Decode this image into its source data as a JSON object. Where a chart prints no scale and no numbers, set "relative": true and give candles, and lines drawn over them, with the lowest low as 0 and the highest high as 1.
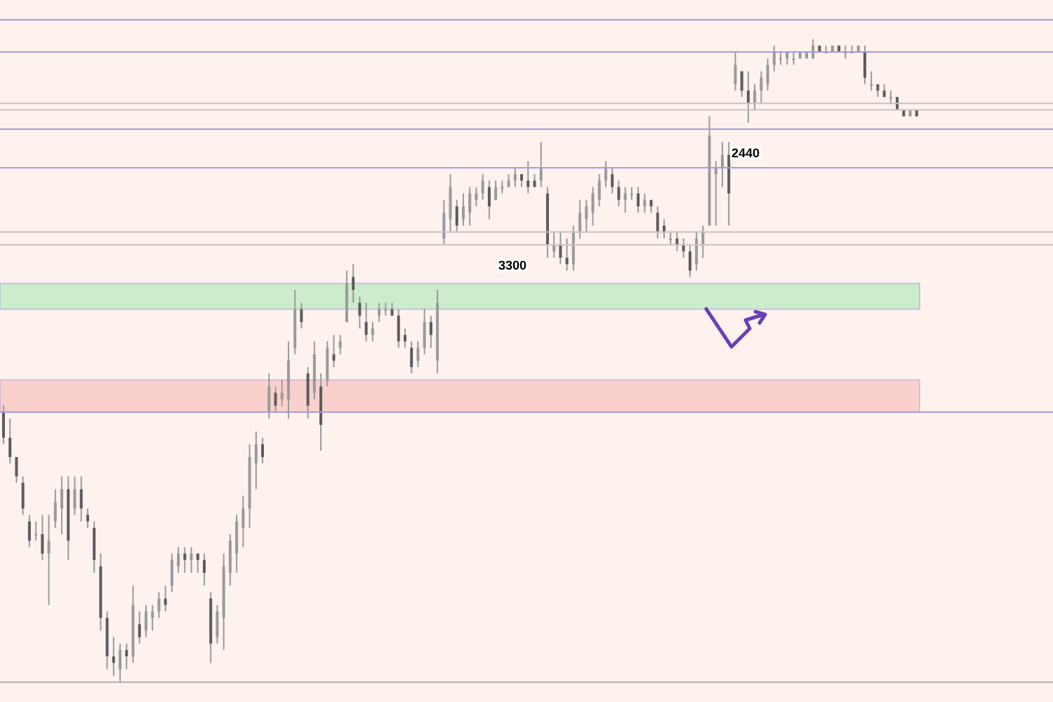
{
  "chart_data": {
    "type": "candlestick",
    "relative": true,
    "tick_labels": false,
    "categories": [
      null,
      null,
      null,
      null,
      null,
      null,
      null,
      null,
      null,
      null,
      null,
      null,
      null,
      null,
      null,
      null,
      null,
      null,
      null,
      null,
      null,
      null,
      null,
      null,
      null,
      null,
      null,
      null,
      null,
      null,
      null,
      null,
      null,
      null,
      null,
      null,
      null,
      null,
      null,
      null,
      null,
      null,
      null,
      null,
      null,
      null,
      null,
      null,
      null,
      null,
      null,
      null,
      null,
      null,
      null,
      null,
      null,
      null,
      null,
      null,
      null,
      null,
      null,
      null,
      null,
      null,
      null,
      null,
      null,
      null,
      null,
      null,
      null,
      null,
      null,
      null,
      null,
      null,
      null,
      null,
      null,
      null,
      null,
      null,
      null,
      null,
      null,
      null,
      null,
      null,
      null,
      null,
      null,
      null,
      null,
      null,
      null,
      null,
      null,
      null,
      null,
      null,
      null,
      null,
      null,
      null,
      null,
      null,
      null,
      null,
      null,
      null,
      null,
      null,
      null,
      null,
      null,
      null,
      null,
      null,
      null,
      null,
      null,
      null,
      null,
      null,
      null,
      null,
      null,
      null,
      null,
      null,
      null,
      null,
      null,
      null,
      null,
      null,
      null,
      null,
      null,
      null
    ],
    "ohlc": [
      [
        0.42,
        0.43,
        0.37,
        0.38
      ],
      [
        0.38,
        0.41,
        0.34,
        0.35
      ],
      [
        0.35,
        0.35,
        0.31,
        0.32
      ],
      [
        0.31,
        0.32,
        0.26,
        0.27
      ],
      [
        0.25,
        0.26,
        0.21,
        0.22
      ],
      [
        0.23,
        0.25,
        0.22,
        0.23
      ],
      [
        0.23,
        0.26,
        0.19,
        0.2
      ],
      [
        0.2,
        0.26,
        0.12,
        0.22
      ],
      [
        0.25,
        0.3,
        0.24,
        0.28
      ],
      [
        0.27,
        0.32,
        0.23,
        0.3
      ],
      [
        0.3,
        0.32,
        0.19,
        0.22
      ],
      [
        0.27,
        0.32,
        0.26,
        0.3
      ],
      [
        0.3,
        0.32,
        0.25,
        0.27
      ],
      [
        0.26,
        0.27,
        0.24,
        0.25
      ],
      [
        0.24,
        0.25,
        0.17,
        0.19
      ],
      [
        0.18,
        0.2,
        0.08,
        0.1
      ],
      [
        0.1,
        0.11,
        0.02,
        0.04
      ],
      [
        0.04,
        0.07,
        0.01,
        0.03
      ],
      [
        0.02,
        0.06,
        0,
        0.05
      ],
      [
        0.05,
        0.06,
        0.02,
        0.04
      ],
      [
        0.04,
        0.15,
        0.03,
        0.12
      ],
      [
        0.09,
        0.11,
        0.06,
        0.07
      ],
      [
        0.08,
        0.12,
        0.07,
        0.11
      ],
      [
        0.1,
        0.12,
        0.08,
        0.11
      ],
      [
        0.11,
        0.14,
        0.1,
        0.13
      ],
      [
        0.13,
        0.15,
        0.11,
        0.12
      ],
      [
        0.15,
        0.2,
        0.14,
        0.19
      ],
      [
        0.18,
        0.21,
        0.17,
        0.2
      ],
      [
        0.2,
        0.21,
        0.17,
        0.19
      ],
      [
        0.19,
        0.21,
        0.17,
        0.2
      ],
      [
        0.2,
        0.2,
        0.17,
        0.19
      ],
      [
        0.19,
        0.2,
        0.15,
        0.17
      ],
      [
        0.13,
        0.14,
        0.03,
        0.06
      ],
      [
        0.07,
        0.12,
        0.06,
        0.11
      ],
      [
        0.1,
        0.2,
        0.05,
        0.18
      ],
      [
        0.17,
        0.23,
        0.15,
        0.22
      ],
      [
        0.2,
        0.26,
        0.17,
        0.25
      ],
      [
        0.24,
        0.29,
        0.21,
        0.27
      ],
      [
        0.27,
        0.37,
        0.24,
        0.35
      ],
      [
        0.34,
        0.39,
        0.3,
        0.37
      ],
      [
        0.37,
        0.38,
        0.34,
        0.35
      ],
      [
        0.42,
        0.48,
        0.41,
        0.46
      ],
      [
        0.45,
        0.46,
        0.42,
        0.43
      ],
      [
        0.44,
        0.47,
        0.43,
        0.45
      ],
      [
        0.44,
        0.53,
        0.41,
        0.5
      ],
      [
        0.52,
        0.61,
        0.51,
        0.58
      ],
      [
        0.58,
        0.59,
        0.55,
        0.56
      ],
      [
        0.48,
        0.49,
        0.41,
        0.43
      ],
      [
        0.45,
        0.53,
        0.44,
        0.51
      ],
      [
        0.46,
        0.48,
        0.36,
        0.4
      ],
      [
        0.47,
        0.53,
        0.46,
        0.52
      ],
      [
        0.51,
        0.54,
        0.49,
        0.5
      ],
      [
        0.52,
        0.54,
        0.51,
        0.53
      ],
      [
        0.56,
        0.64,
        0.56,
        0.62
      ],
      [
        0.63,
        0.65,
        0.59,
        0.61
      ],
      [
        0.59,
        0.6,
        0.55,
        0.57
      ],
      [
        0.56,
        0.59,
        0.53,
        0.54
      ],
      [
        0.54,
        0.56,
        0.53,
        0.55
      ],
      [
        0.57,
        0.59,
        0.56,
        0.58
      ],
      [
        0.58,
        0.59,
        0.57,
        0.58
      ],
      [
        0.58,
        0.59,
        0.57,
        0.57
      ],
      [
        0.57,
        0.58,
        0.52,
        0.53
      ],
      [
        0.54,
        0.55,
        0.52,
        0.53
      ],
      [
        0.52,
        0.53,
        0.48,
        0.49
      ],
      [
        0.5,
        0.53,
        0.49,
        0.52
      ],
      [
        0.52,
        0.58,
        0.51,
        0.56
      ],
      [
        0.56,
        0.57,
        0.52,
        0.54
      ],
      [
        0.5,
        0.61,
        0.48,
        0.59
      ],
      [
        0.69,
        0.75,
        0.68,
        0.73
      ],
      [
        0.72,
        0.79,
        0.7,
        0.77
      ],
      [
        0.74,
        0.75,
        0.7,
        0.71
      ],
      [
        0.72,
        0.76,
        0.71,
        0.74
      ],
      [
        0.73,
        0.77,
        0.71,
        0.76
      ],
      [
        0.75,
        0.77,
        0.74,
        0.76
      ],
      [
        0.76,
        0.79,
        0.75,
        0.78
      ],
      [
        0.77,
        0.78,
        0.72,
        0.74
      ],
      [
        0.75,
        0.78,
        0.75,
        0.77
      ],
      [
        0.77,
        0.78,
        0.76,
        0.77
      ],
      [
        0.77,
        0.79,
        0.77,
        0.78
      ],
      [
        0.78,
        0.8,
        0.77,
        0.79
      ],
      [
        0.79,
        0.79,
        0.77,
        0.78
      ],
      [
        0.78,
        0.81,
        0.76,
        0.77
      ],
      [
        0.78,
        0.79,
        0.77,
        0.77
      ],
      [
        0.78,
        0.84,
        0.77,
        0.8
      ],
      [
        0.76,
        0.77,
        0.66,
        0.68
      ],
      [
        0.67,
        0.7,
        0.66,
        0.68
      ],
      [
        0.68,
        0.7,
        0.65,
        0.66
      ],
      [
        0.66,
        0.69,
        0.64,
        0.65
      ],
      [
        0.65,
        0.71,
        0.64,
        0.7
      ],
      [
        0.7,
        0.75,
        0.69,
        0.73
      ],
      [
        0.72,
        0.75,
        0.7,
        0.74
      ],
      [
        0.73,
        0.77,
        0.71,
        0.76
      ],
      [
        0.75,
        0.79,
        0.74,
        0.78
      ],
      [
        0.78,
        0.81,
        0.77,
        0.8
      ],
      [
        0.79,
        0.8,
        0.76,
        0.77
      ],
      [
        0.77,
        0.78,
        0.74,
        0.75
      ],
      [
        0.75,
        0.77,
        0.73,
        0.76
      ],
      [
        0.76,
        0.77,
        0.75,
        0.76
      ],
      [
        0.76,
        0.77,
        0.73,
        0.74
      ],
      [
        0.74,
        0.76,
        0.73,
        0.75
      ],
      [
        0.75,
        0.75,
        0.73,
        0.74
      ],
      [
        0.73,
        0.74,
        0.69,
        0.7
      ],
      [
        0.71,
        0.72,
        0.69,
        0.7
      ],
      [
        0.69,
        0.7,
        0.68,
        0.69
      ],
      [
        0.69,
        0.7,
        0.67,
        0.68
      ],
      [
        0.68,
        0.69,
        0.66,
        0.67
      ],
      [
        0.67,
        0.68,
        0.63,
        0.64
      ],
      [
        0.65,
        0.7,
        0.64,
        0.69
      ],
      [
        0.68,
        0.71,
        0.66,
        0.7
      ],
      [
        0.71,
        0.88,
        0.71,
        0.85
      ],
      [
        0.79,
        0.81,
        0.71,
        0.8
      ],
      [
        0.8,
        0.84,
        0.77,
        0.82
      ],
      [
        0.82,
        0.84,
        0.71,
        0.76
      ],
      [
        0.93,
        0.98,
        0.92,
        0.96
      ],
      [
        0.95,
        0.95,
        0.91,
        0.92
      ],
      [
        0.92,
        0.95,
        0.87,
        0.9
      ],
      [
        0.9,
        0.93,
        0.89,
        0.92
      ],
      [
        0.92,
        0.95,
        0.9,
        0.94
      ],
      [
        0.93,
        0.97,
        0.92,
        0.96
      ],
      [
        0.96,
        0.99,
        0.95,
        0.98
      ],
      [
        0.97,
        0.98,
        0.96,
        0.97
      ],
      [
        0.97,
        0.98,
        0.96,
        0.98
      ],
      [
        0.97,
        0.98,
        0.96,
        0.97
      ],
      [
        0.97,
        0.98,
        0.97,
        0.98
      ],
      [
        0.97,
        0.98,
        0.97,
        0.98
      ],
      [
        0.97,
        1,
        0.97,
        0.99
      ],
      [
        0.99,
        0.99,
        0.98,
        0.98
      ],
      [
        0.98,
        0.99,
        0.98,
        0.98
      ],
      [
        0.98,
        0.99,
        0.98,
        0.99
      ],
      [
        0.99,
        0.99,
        0.98,
        0.98
      ],
      [
        0.98,
        0.99,
        0.97,
        0.98
      ],
      [
        0.98,
        0.99,
        0.98,
        0.98
      ],
      [
        0.98,
        0.99,
        0.98,
        0.99
      ],
      [
        0.98,
        0.99,
        0.93,
        0.94
      ],
      [
        0.93,
        0.95,
        0.92,
        0.93
      ],
      [
        0.93,
        0.93,
        0.91,
        0.92
      ],
      [
        0.92,
        0.93,
        0.91,
        0.91
      ],
      [
        0.91,
        0.92,
        0.9,
        0.91
      ],
      [
        0.91,
        0.91,
        0.89,
        0.89
      ],
      [
        0.89,
        0.89,
        0.88,
        0.88
      ],
      [
        0.88,
        0.89,
        0.88,
        0.89
      ],
      [
        0.89,
        0.89,
        0.88,
        0.88
      ]
    ],
    "ref_lines": [
      {
        "axis": "y",
        "value": 1.03,
        "color": "#a49ae6"
      },
      {
        "axis": "y",
        "value": 0.98,
        "color": "#a49ae6"
      },
      {
        "axis": "y",
        "value": 0.9,
        "color": "#cdbfc0"
      },
      {
        "axis": "y",
        "value": 0.89,
        "color": "#cdbfc0"
      },
      {
        "axis": "y",
        "value": 0.86,
        "color": "#a49ae6"
      },
      {
        "axis": "y",
        "value": 0.8,
        "color": "#a49ae6"
      },
      {
        "axis": "y",
        "value": 0.7,
        "color": "#cdbfc0"
      },
      {
        "axis": "y",
        "value": 0.68,
        "color": "#cdbfc0"
      },
      {
        "axis": "y",
        "value": 0.42,
        "color": "#a49ae6"
      },
      {
        "axis": "y",
        "value": 0,
        "color": "#b5aeae"
      }
    ],
    "bands": [
      {
        "axis": "y",
        "from": 0.58,
        "to": 0.62,
        "color": "#cdeccb"
      },
      {
        "axis": "y",
        "from": 0.42,
        "to": 0.47,
        "color": "#f9d0cc"
      }
    ],
    "annotations": [
      "3300",
      "2440"
    ]
  }
}
